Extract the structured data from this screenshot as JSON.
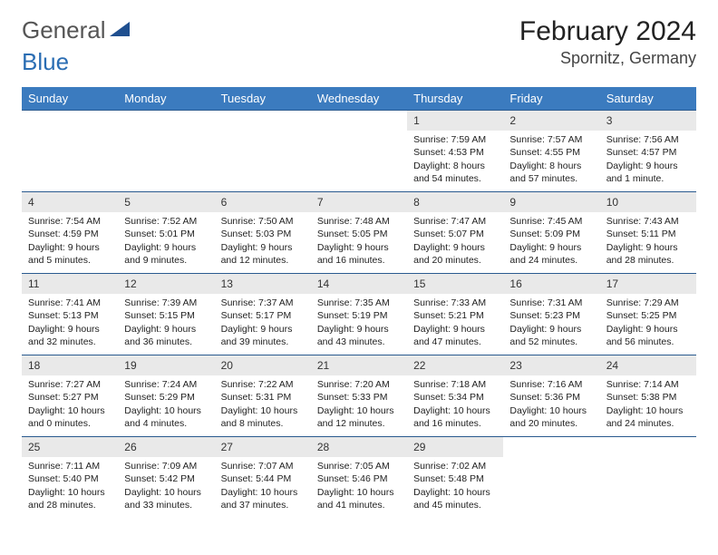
{
  "brand": {
    "line1": "General",
    "line2": "Blue"
  },
  "title": {
    "month": "February 2024",
    "location": "Spornitz, Germany"
  },
  "colors": {
    "header_bg": "#3b7bbf",
    "header_text": "#ffffff",
    "daynum_bg": "#e9e9e9",
    "row_border": "#2a5a8f",
    "logo_gray": "#555555",
    "logo_blue": "#2a6db3",
    "logo_triangle": "#1f4f8f"
  },
  "weekdays": [
    "Sunday",
    "Monday",
    "Tuesday",
    "Wednesday",
    "Thursday",
    "Friday",
    "Saturday"
  ],
  "first_weekday_index": 4,
  "days": [
    {
      "n": 1,
      "sunrise": "7:59 AM",
      "sunset": "4:53 PM",
      "daylight": "8 hours and 54 minutes."
    },
    {
      "n": 2,
      "sunrise": "7:57 AM",
      "sunset": "4:55 PM",
      "daylight": "8 hours and 57 minutes."
    },
    {
      "n": 3,
      "sunrise": "7:56 AM",
      "sunset": "4:57 PM",
      "daylight": "9 hours and 1 minute."
    },
    {
      "n": 4,
      "sunrise": "7:54 AM",
      "sunset": "4:59 PM",
      "daylight": "9 hours and 5 minutes."
    },
    {
      "n": 5,
      "sunrise": "7:52 AM",
      "sunset": "5:01 PM",
      "daylight": "9 hours and 9 minutes."
    },
    {
      "n": 6,
      "sunrise": "7:50 AM",
      "sunset": "5:03 PM",
      "daylight": "9 hours and 12 minutes."
    },
    {
      "n": 7,
      "sunrise": "7:48 AM",
      "sunset": "5:05 PM",
      "daylight": "9 hours and 16 minutes."
    },
    {
      "n": 8,
      "sunrise": "7:47 AM",
      "sunset": "5:07 PM",
      "daylight": "9 hours and 20 minutes."
    },
    {
      "n": 9,
      "sunrise": "7:45 AM",
      "sunset": "5:09 PM",
      "daylight": "9 hours and 24 minutes."
    },
    {
      "n": 10,
      "sunrise": "7:43 AM",
      "sunset": "5:11 PM",
      "daylight": "9 hours and 28 minutes."
    },
    {
      "n": 11,
      "sunrise": "7:41 AM",
      "sunset": "5:13 PM",
      "daylight": "9 hours and 32 minutes."
    },
    {
      "n": 12,
      "sunrise": "7:39 AM",
      "sunset": "5:15 PM",
      "daylight": "9 hours and 36 minutes."
    },
    {
      "n": 13,
      "sunrise": "7:37 AM",
      "sunset": "5:17 PM",
      "daylight": "9 hours and 39 minutes."
    },
    {
      "n": 14,
      "sunrise": "7:35 AM",
      "sunset": "5:19 PM",
      "daylight": "9 hours and 43 minutes."
    },
    {
      "n": 15,
      "sunrise": "7:33 AM",
      "sunset": "5:21 PM",
      "daylight": "9 hours and 47 minutes."
    },
    {
      "n": 16,
      "sunrise": "7:31 AM",
      "sunset": "5:23 PM",
      "daylight": "9 hours and 52 minutes."
    },
    {
      "n": 17,
      "sunrise": "7:29 AM",
      "sunset": "5:25 PM",
      "daylight": "9 hours and 56 minutes."
    },
    {
      "n": 18,
      "sunrise": "7:27 AM",
      "sunset": "5:27 PM",
      "daylight": "10 hours and 0 minutes."
    },
    {
      "n": 19,
      "sunrise": "7:24 AM",
      "sunset": "5:29 PM",
      "daylight": "10 hours and 4 minutes."
    },
    {
      "n": 20,
      "sunrise": "7:22 AM",
      "sunset": "5:31 PM",
      "daylight": "10 hours and 8 minutes."
    },
    {
      "n": 21,
      "sunrise": "7:20 AM",
      "sunset": "5:33 PM",
      "daylight": "10 hours and 12 minutes."
    },
    {
      "n": 22,
      "sunrise": "7:18 AM",
      "sunset": "5:34 PM",
      "daylight": "10 hours and 16 minutes."
    },
    {
      "n": 23,
      "sunrise": "7:16 AM",
      "sunset": "5:36 PM",
      "daylight": "10 hours and 20 minutes."
    },
    {
      "n": 24,
      "sunrise": "7:14 AM",
      "sunset": "5:38 PM",
      "daylight": "10 hours and 24 minutes."
    },
    {
      "n": 25,
      "sunrise": "7:11 AM",
      "sunset": "5:40 PM",
      "daylight": "10 hours and 28 minutes."
    },
    {
      "n": 26,
      "sunrise": "7:09 AM",
      "sunset": "5:42 PM",
      "daylight": "10 hours and 33 minutes."
    },
    {
      "n": 27,
      "sunrise": "7:07 AM",
      "sunset": "5:44 PM",
      "daylight": "10 hours and 37 minutes."
    },
    {
      "n": 28,
      "sunrise": "7:05 AM",
      "sunset": "5:46 PM",
      "daylight": "10 hours and 41 minutes."
    },
    {
      "n": 29,
      "sunrise": "7:02 AM",
      "sunset": "5:48 PM",
      "daylight": "10 hours and 45 minutes."
    }
  ],
  "labels": {
    "sunrise": "Sunrise:",
    "sunset": "Sunset:",
    "daylight": "Daylight:"
  }
}
